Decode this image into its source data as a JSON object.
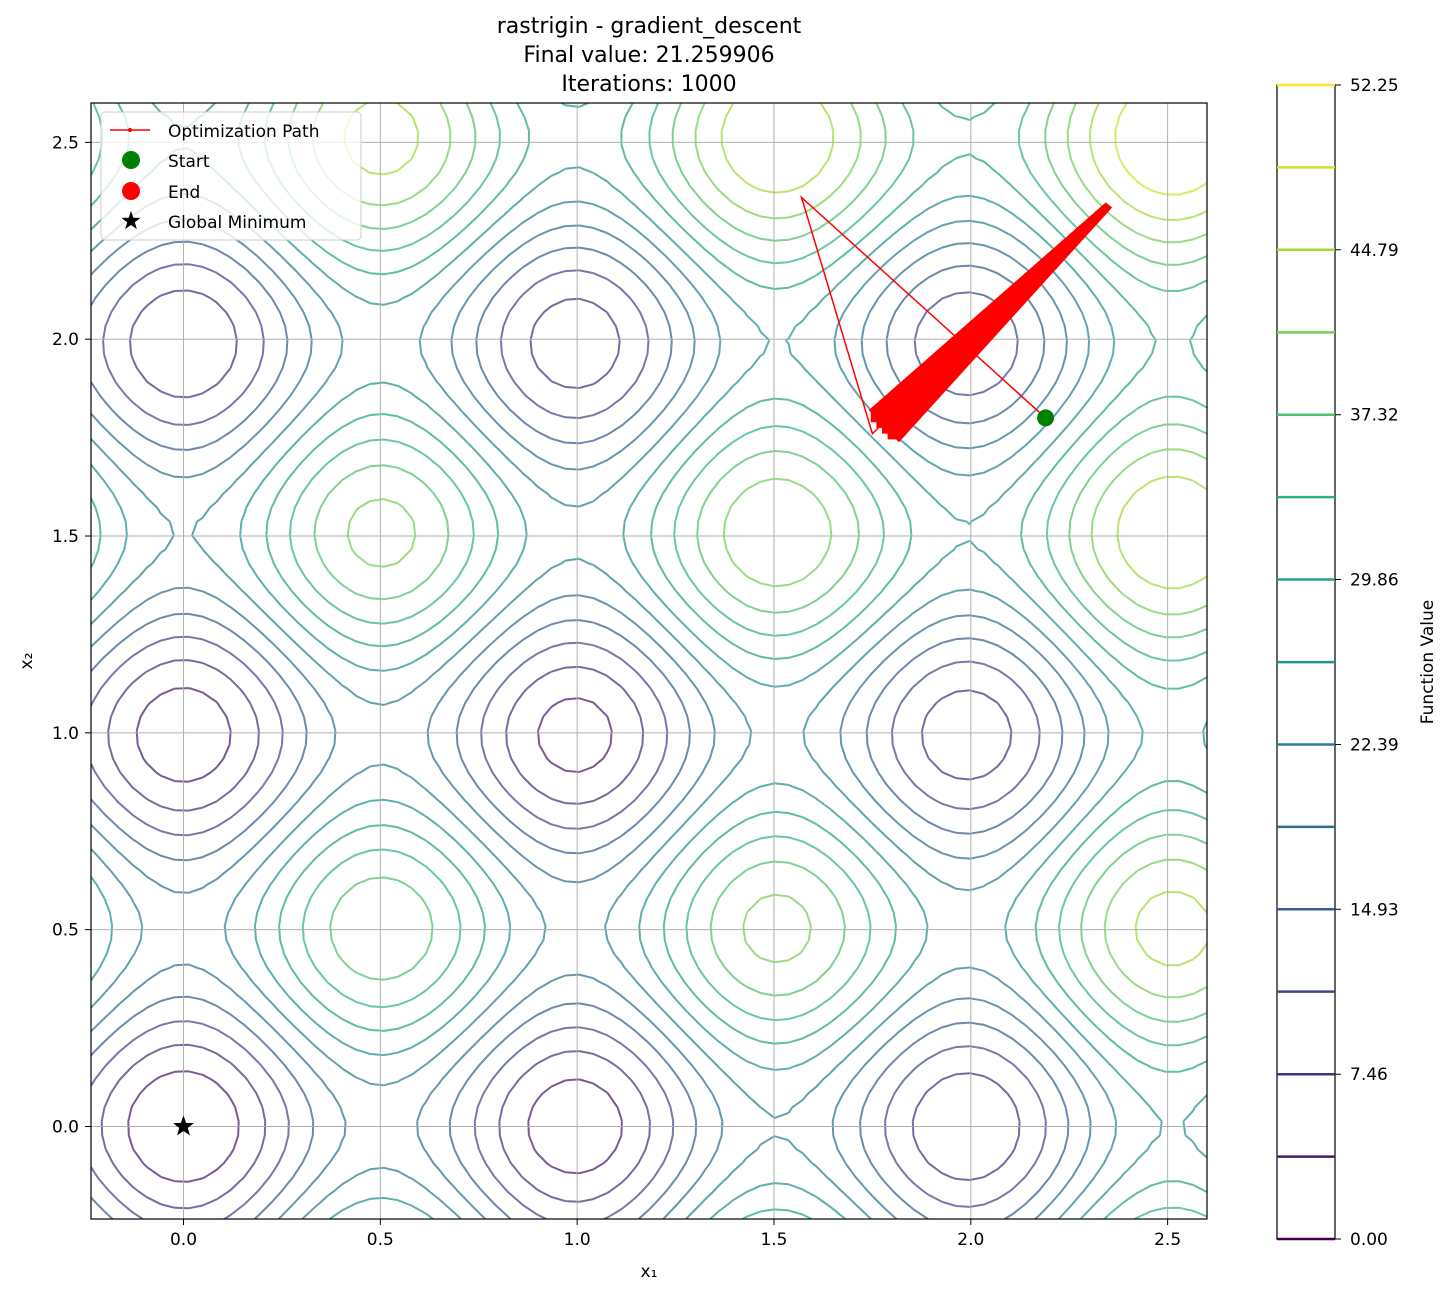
{
  "chart_data": {
    "type": "contour",
    "title_lines": [
      "rastrigin - gradient_descent",
      "Final value: 21.259906",
      "Iterations: 1000"
    ],
    "xlabel": "x₁",
    "ylabel": "x₂",
    "xlim": [
      -0.235,
      2.6
    ],
    "ylim": [
      -0.235,
      2.6
    ],
    "xticks": [
      0.0,
      0.5,
      1.0,
      1.5,
      2.0,
      2.5
    ],
    "yticks": [
      0.0,
      0.5,
      1.0,
      1.5,
      2.0,
      2.5
    ],
    "xtick_labels": [
      "0.0",
      "0.5",
      "1.0",
      "1.5",
      "2.0",
      "2.5"
    ],
    "ytick_labels": [
      "0.0",
      "0.5",
      "1.0",
      "1.5",
      "2.0",
      "2.5"
    ],
    "grid": true,
    "function": "rastrigin",
    "contour_levels": [
      0.0,
      3.73,
      7.46,
      11.2,
      14.93,
      18.66,
      22.39,
      26.12,
      29.86,
      33.59,
      37.32,
      41.05,
      44.79,
      48.52,
      52.25
    ],
    "colormap": "viridis",
    "colorbar": {
      "label": "Function Value",
      "ticks": [
        0.0,
        7.46,
        14.93,
        22.39,
        29.86,
        37.32,
        44.79,
        52.25
      ],
      "tick_labels": [
        "0.00",
        "7.46",
        "14.93",
        "22.39",
        "29.86",
        "37.32",
        "44.79",
        "52.25"
      ]
    },
    "legend": {
      "placement": "top-left",
      "entries": [
        {
          "label": "Optimization Path",
          "color": "#ff0000",
          "marker": "line"
        },
        {
          "label": "Start",
          "color": "#008000",
          "marker": "circle"
        },
        {
          "label": "End",
          "color": "#ff0000",
          "marker": "circle"
        },
        {
          "label": "Global Minimum",
          "color": "#000000",
          "marker": "star"
        }
      ]
    },
    "start": {
      "x": 2.19,
      "y": 1.8
    },
    "global_minimum": {
      "x": 0.0,
      "y": 0.0
    },
    "path_points": [
      [
        2.19,
        1.8
      ],
      [
        1.57,
        2.36
      ],
      [
        1.75,
        1.76
      ],
      [
        2.35,
        2.34
      ]
    ],
    "oscillation_band": {
      "from": [
        1.78,
        1.78
      ],
      "to": [
        2.35,
        2.34
      ]
    },
    "colors": {
      "path": "#ff0000",
      "start": "#008000",
      "end": "#ff0000",
      "grid": "#b0b0b0"
    }
  }
}
